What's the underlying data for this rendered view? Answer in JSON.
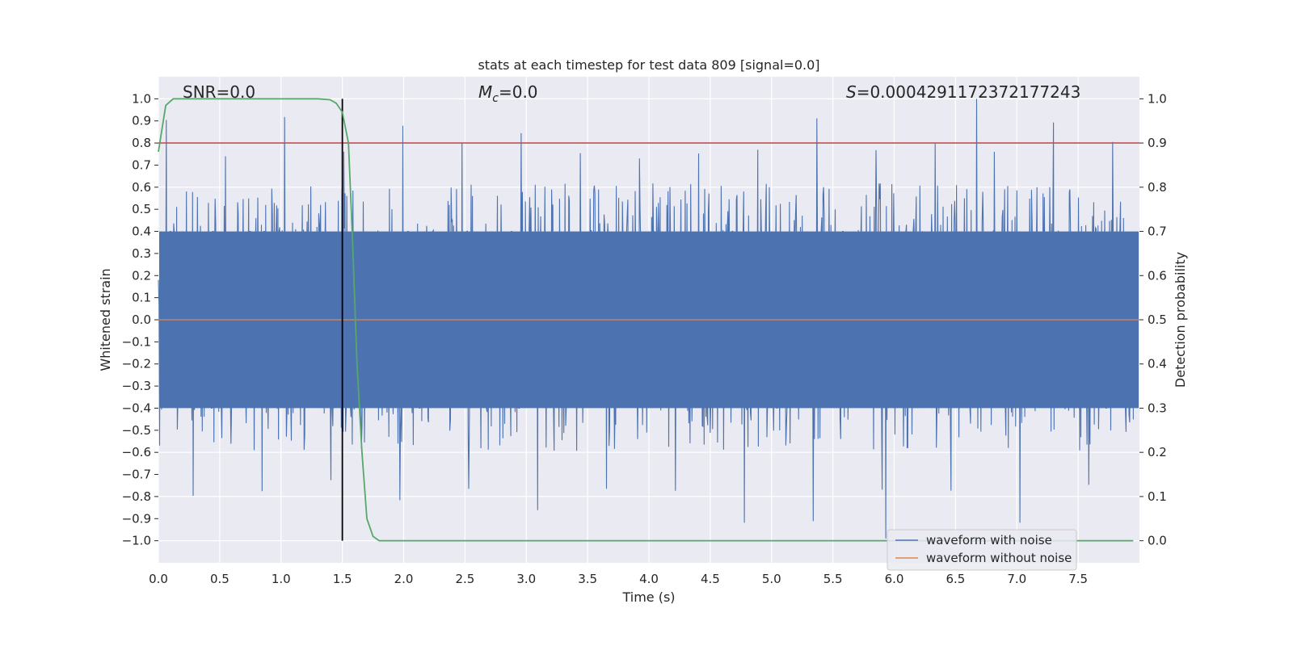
{
  "chart_data": {
    "type": "line",
    "title": "stats at each timestep for test data 809 [signal=0.0]",
    "xlabel": "Time (s)",
    "ylabel": "Whitened strain",
    "y2label": "Detection probability",
    "xlim": [
      0.0,
      8.0
    ],
    "ylim": [
      -1.1,
      1.1
    ],
    "y2lim": [
      -0.05,
      1.05
    ],
    "x_ticks": [
      0.0,
      0.5,
      1.0,
      1.5,
      2.0,
      2.5,
      3.0,
      3.5,
      4.0,
      4.5,
      5.0,
      5.5,
      6.0,
      6.5,
      7.0,
      7.5
    ],
    "x_tick_labels": [
      "0.0",
      "0.5",
      "1.0",
      "1.5",
      "2.0",
      "2.5",
      "3.0",
      "3.5",
      "4.0",
      "4.5",
      "5.0",
      "5.5",
      "6.0",
      "6.5",
      "7.0",
      "7.5"
    ],
    "y_ticks": [
      1.0,
      0.9,
      0.8,
      0.7,
      0.6,
      0.5,
      0.4,
      0.3,
      0.2,
      0.1,
      0.0,
      -0.1,
      -0.2,
      -0.3,
      -0.4,
      -0.5,
      -0.6,
      -0.7,
      -0.8,
      -0.9,
      -1.0
    ],
    "y_tick_labels": [
      "1.0",
      "0.9",
      "0.8",
      "0.7",
      "0.6",
      "0.5",
      "0.4",
      "0.3",
      "0.2",
      "0.1",
      "0.0",
      "−0.1",
      "−0.2",
      "−0.3",
      "−0.4",
      "−0.5",
      "−0.6",
      "−0.7",
      "−0.8",
      "−0.9",
      "−1.0"
    ],
    "y2_ticks": [
      1.0,
      0.9,
      0.8,
      0.7,
      0.6,
      0.5,
      0.4,
      0.3,
      0.2,
      0.1,
      0.0
    ],
    "y2_tick_labels": [
      "1.0",
      "0.9",
      "0.8",
      "0.7",
      "0.6",
      "0.5",
      "0.4",
      "0.3",
      "0.2",
      "0.1",
      "0.0"
    ],
    "annotations": {
      "snr": "SNR=0.0",
      "mc_symbol": "M",
      "mc_subscript": "c",
      "mc_value": "=0.0",
      "s_symbol": "S",
      "s_value": "=0.0004291172372177243"
    },
    "threshold": {
      "value": 0.9,
      "axis": "y2",
      "color": "#c44e52"
    },
    "marker_time": 1.5,
    "noise_series": {
      "name": "waveform with noise",
      "color": "#4c72b0",
      "approx_core_amplitude": 0.4,
      "max_peak": 1.0,
      "min_peak": -0.99
    },
    "clean_series": {
      "name": "waveform without noise",
      "color": "#dd8452",
      "value": 0.0
    },
    "probability_series": {
      "name": "detection probability",
      "color": "#55a868",
      "x": [
        0.0,
        0.06,
        0.12,
        0.3,
        0.6,
        1.0,
        1.3,
        1.4,
        1.45,
        1.5,
        1.55,
        1.58,
        1.62,
        1.66,
        1.7,
        1.75,
        1.8,
        2.0,
        3.0,
        5.0,
        7.0,
        7.95
      ],
      "values": [
        0.88,
        0.985,
        1.0,
        1.0,
        1.0,
        1.0,
        1.0,
        0.998,
        0.99,
        0.97,
        0.9,
        0.7,
        0.4,
        0.2,
        0.05,
        0.01,
        0.0,
        0.0,
        0.0,
        0.0,
        0.0,
        0.0
      ]
    },
    "legend": {
      "position": "lower-right",
      "entries": [
        {
          "label": "waveform with noise",
          "color": "#4c72b0"
        },
        {
          "label": "waveform without noise",
          "color": "#dd8452"
        }
      ]
    },
    "grid": true
  }
}
